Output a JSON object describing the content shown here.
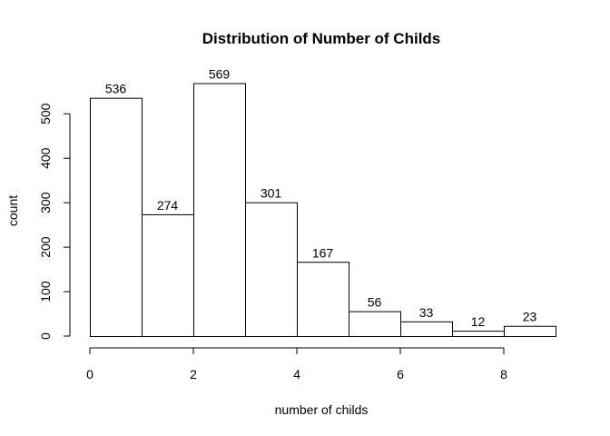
{
  "chart_data": {
    "type": "bar",
    "title": "Distribution of Number of Childs",
    "xlabel": "number of childs",
    "ylabel": "count",
    "bins": [
      {
        "start": 0,
        "end": 1,
        "value": 536
      },
      {
        "start": 1,
        "end": 2,
        "value": 274
      },
      {
        "start": 2,
        "end": 3,
        "value": 569
      },
      {
        "start": 3,
        "end": 4,
        "value": 301
      },
      {
        "start": 4,
        "end": 5,
        "value": 167
      },
      {
        "start": 5,
        "end": 6,
        "value": 56
      },
      {
        "start": 6,
        "end": 7,
        "value": 33
      },
      {
        "start": 7,
        "end": 8,
        "value": 12
      },
      {
        "start": 8,
        "end": 9,
        "value": 23
      }
    ],
    "data_labels": [
      "536",
      "274",
      "569",
      "301",
      "167",
      "56",
      "33",
      "12",
      "23"
    ],
    "xlim": [
      0,
      9
    ],
    "ylim": [
      0,
      569
    ],
    "x_ticks": [
      0,
      2,
      4,
      6,
      8
    ],
    "x_tick_labels": [
      "0",
      "2",
      "4",
      "6",
      "8"
    ],
    "y_ticks": [
      0,
      100,
      200,
      300,
      400,
      500
    ],
    "y_tick_labels": [
      "0",
      "100",
      "200",
      "300",
      "400",
      "500"
    ],
    "grid": false,
    "legend": "none",
    "colors": {
      "bar_fill": "#ffffff",
      "bar_stroke": "#000000"
    }
  }
}
